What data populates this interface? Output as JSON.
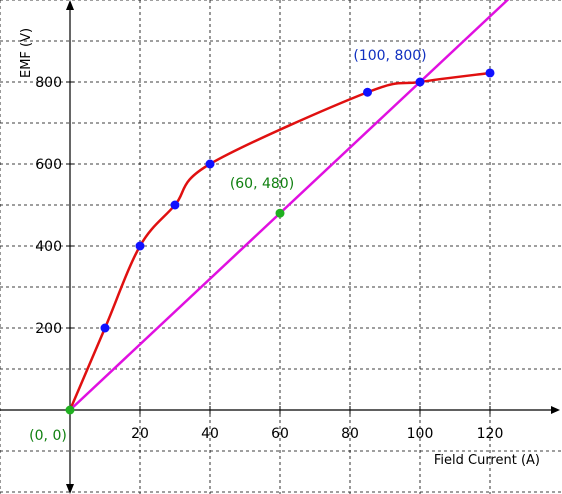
{
  "chart_data": {
    "type": "line",
    "xlabel": "Field Current (A)",
    "ylabel": "EMF (V)",
    "xlim": [
      -20,
      138
    ],
    "ylim": [
      -200,
      1000
    ],
    "x_ticks": [
      20,
      40,
      60,
      80,
      100,
      120
    ],
    "y_ticks": [
      200,
      400,
      600,
      800
    ],
    "grid": true,
    "series": [
      {
        "kind": "curve",
        "color": "#e01010",
        "marker_color": "#1010ff",
        "points": [
          [
            0,
            0
          ],
          [
            10,
            200
          ],
          [
            20,
            400
          ],
          [
            30,
            500
          ],
          [
            40,
            600
          ],
          [
            85,
            775
          ],
          [
            100,
            800
          ],
          [
            120,
            822
          ]
        ]
      },
      {
        "kind": "line",
        "color": "#e010e0",
        "points": [
          [
            0,
            0
          ],
          [
            138,
            1104
          ]
        ]
      }
    ],
    "highlight_points": [
      {
        "x": 0,
        "y": 0,
        "color": "#20b020"
      },
      {
        "x": 60,
        "y": 480,
        "color": "#20b020"
      }
    ],
    "annotations": [
      {
        "text": "(0, 0)",
        "x": 0,
        "y": 0,
        "color": "#108010"
      },
      {
        "text": "(60, 480)",
        "x": 60,
        "y": 480,
        "color": "#108010"
      },
      {
        "text": "(100, 800)",
        "x": 100,
        "y": 800,
        "color": "#1030c0"
      }
    ]
  }
}
